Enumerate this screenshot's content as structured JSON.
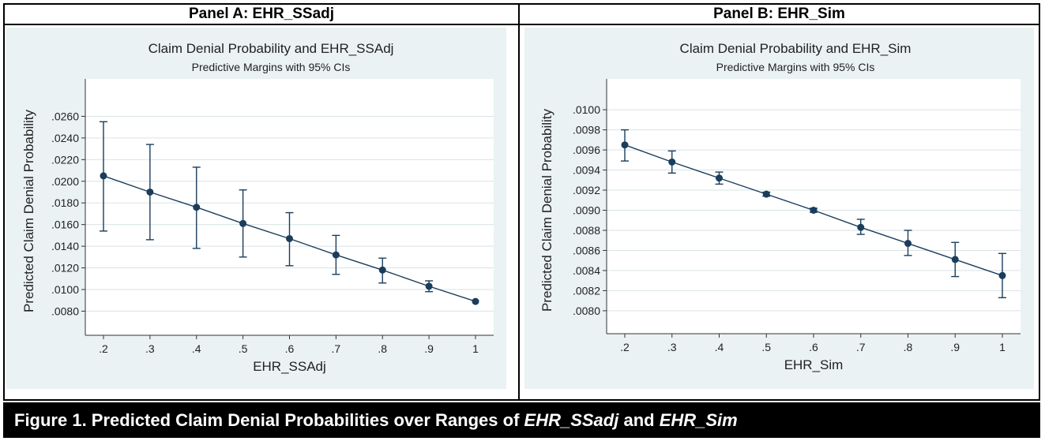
{
  "panels": {
    "a_header": "Panel A: EHR_SSadj",
    "b_header": "Panel B: EHR_Sim"
  },
  "caption": {
    "prefix": "Figure 1. Predicted Claim Denial Probabilities over Ranges of ",
    "var1": "EHR_SSadj",
    "mid": " and ",
    "var2": "EHR_Sim"
  },
  "colors": {
    "marker": "#1a3d5c",
    "line": "#1a3d5c",
    "panel_bg": "#eaf2f3",
    "grid": "#d9e3e6"
  },
  "chart_data": [
    {
      "type": "line",
      "title": "Claim Denial Probability and EHR_SSAdj",
      "subtitle": "Predictive Margins with 95% CIs",
      "xlabel": "EHR_SSAdj",
      "ylabel": "Predicted Claim Denial Probability",
      "x": [
        0.2,
        0.3,
        0.4,
        0.5,
        0.6,
        0.7,
        0.8,
        0.9,
        1.0
      ],
      "y": [
        0.0205,
        0.019,
        0.0176,
        0.0161,
        0.0147,
        0.0132,
        0.0118,
        0.0103,
        0.0089
      ],
      "ci_low": [
        0.0154,
        0.0146,
        0.0138,
        0.013,
        0.0122,
        0.0114,
        0.0106,
        0.0098,
        0.0089
      ],
      "ci_high": [
        0.0255,
        0.0234,
        0.0213,
        0.0192,
        0.0171,
        0.015,
        0.0129,
        0.0108,
        0.0089
      ],
      "xlim": [
        0.2,
        1.0
      ],
      "ylim": [
        0.0065,
        0.028
      ],
      "x_ticks": [
        ".2",
        ".3",
        ".4",
        ".5",
        ".6",
        ".7",
        ".8",
        ".9",
        "1"
      ],
      "y_ticks": [
        0.008,
        0.01,
        0.012,
        0.014,
        0.016,
        0.018,
        0.02,
        0.022,
        0.024,
        0.026
      ],
      "y_tick_labels": [
        ".0080",
        ".0100",
        ".0120",
        ".0140",
        ".0160",
        ".0180",
        ".0200",
        ".0220",
        ".0240",
        ".0260"
      ],
      "grid": true
    },
    {
      "type": "line",
      "title": "Claim Denial Probability and EHR_Sim",
      "subtitle": "Predictive Margins with 95% CIs",
      "xlabel": "EHR_Sim",
      "ylabel": "Predicted Claim Denial Probability",
      "x": [
        0.2,
        0.3,
        0.4,
        0.5,
        0.6,
        0.7,
        0.8,
        0.9,
        1.0
      ],
      "y": [
        0.00965,
        0.00948,
        0.00932,
        0.00916,
        0.009,
        0.00883,
        0.00867,
        0.00851,
        0.00835
      ],
      "ci_low": [
        0.00949,
        0.00937,
        0.00926,
        0.00914,
        0.00898,
        0.00876,
        0.00855,
        0.00834,
        0.00813
      ],
      "ci_high": [
        0.0098,
        0.00959,
        0.00938,
        0.00918,
        0.00902,
        0.00891,
        0.0088,
        0.00868,
        0.00857
      ],
      "xlim": [
        0.2,
        1.0
      ],
      "ylim": [
        0.00785,
        0.01015
      ],
      "x_ticks": [
        ".2",
        ".3",
        ".4",
        ".5",
        ".6",
        ".7",
        ".8",
        ".9",
        "1"
      ],
      "y_ticks": [
        0.008,
        0.0082,
        0.0084,
        0.0086,
        0.0088,
        0.009,
        0.0092,
        0.0094,
        0.0096,
        0.0098,
        0.01
      ],
      "y_tick_labels": [
        ".0080",
        ".0082",
        ".0084",
        ".0086",
        ".0088",
        ".0090",
        ".0092",
        ".0094",
        ".0096",
        ".0098",
        ".0100"
      ],
      "grid": true
    }
  ]
}
